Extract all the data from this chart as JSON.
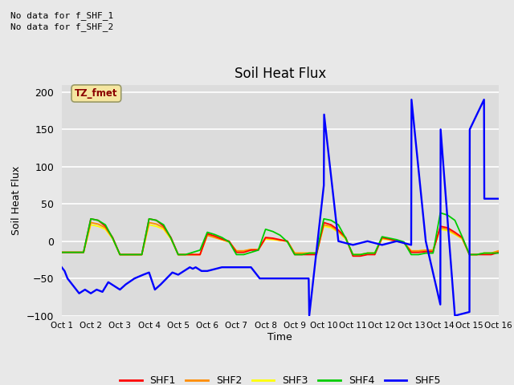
{
  "title": "Soil Heat Flux",
  "ylabel": "Soil Heat Flux",
  "xlabel": "Time",
  "no_data_text": [
    "No data for f_SHF_1",
    "No data for f_SHF_2"
  ],
  "tz_label": "TZ_fmet",
  "tz_box_color": "#f5e6a0",
  "tz_text_color": "#8b0000",
  "xlim": [
    0,
    15
  ],
  "ylim": [
    -100,
    210
  ],
  "yticks": [
    -100,
    -50,
    0,
    50,
    100,
    150,
    200
  ],
  "xtick_labels": [
    "Oct 1",
    "Oct 2",
    "Oct 3",
    "Oct 4",
    "Oct 5",
    "Oct 6",
    "Oct 7",
    "Oct 8",
    "Oct 9",
    "Oct 10",
    "Oct 11",
    "Oct 12",
    "Oct 13",
    "Oct 14",
    "Oct 15",
    "Oct 16"
  ],
  "background_color": "#e8e8e8",
  "plot_bg_color": "#dcdcdc",
  "grid_color": "#ffffff",
  "legend_colors": [
    "#ff0000",
    "#ff8c00",
    "#ffff00",
    "#00cc00",
    "#0000ff"
  ],
  "legend_labels": [
    "SHF1",
    "SHF2",
    "SHF3",
    "SHF4",
    "SHF5"
  ],
  "shf1_x": [
    0.0,
    0.25,
    0.5,
    0.75,
    1.0,
    1.25,
    1.5,
    1.75,
    2.0,
    2.25,
    2.5,
    2.75,
    3.0,
    3.25,
    3.5,
    3.75,
    4.0,
    4.25,
    4.5,
    4.75,
    5.0,
    5.25,
    5.5,
    5.75,
    6.0,
    6.25,
    6.5,
    6.75,
    7.0,
    7.25,
    7.5,
    7.75,
    8.0,
    8.25,
    8.5,
    8.75,
    9.0,
    9.25,
    9.5,
    9.75,
    10.0,
    10.25,
    10.5,
    10.75,
    11.0,
    11.25,
    11.5,
    11.75,
    12.0,
    12.25,
    12.5,
    12.75,
    13.0,
    13.25,
    13.5,
    13.75,
    14.0,
    14.25,
    14.5,
    14.75,
    15.0
  ],
  "shf1_y": [
    -15,
    -15,
    -15,
    -15,
    30,
    28,
    20,
    5,
    -18,
    -18,
    -18,
    -18,
    30,
    28,
    20,
    5,
    -18,
    -18,
    -18,
    -18,
    10,
    7,
    3,
    0,
    -15,
    -15,
    -12,
    -12,
    5,
    4,
    2,
    0,
    -18,
    -18,
    -18,
    -18,
    25,
    22,
    15,
    5,
    -20,
    -20,
    -18,
    -18,
    5,
    3,
    0,
    -2,
    -15,
    -15,
    -14,
    -14,
    20,
    18,
    12,
    5,
    -18,
    -18,
    -18,
    -18,
    -15
  ],
  "shf2_x": [
    0.0,
    0.25,
    0.5,
    0.75,
    1.0,
    1.25,
    1.5,
    1.75,
    2.0,
    2.25,
    2.5,
    2.75,
    3.0,
    3.25,
    3.5,
    3.75,
    4.0,
    4.25,
    4.5,
    4.75,
    5.0,
    5.25,
    5.5,
    5.75,
    6.0,
    6.25,
    6.5,
    6.75,
    7.0,
    7.25,
    7.5,
    7.75,
    8.0,
    8.25,
    8.5,
    8.75,
    9.0,
    9.25,
    9.5,
    9.75,
    10.0,
    10.25,
    10.5,
    10.75,
    11.0,
    11.25,
    11.5,
    11.75,
    12.0,
    12.25,
    12.5,
    12.75,
    13.0,
    13.25,
    13.5,
    13.75,
    14.0,
    14.25,
    14.5,
    14.75,
    15.0
  ],
  "shf2_y": [
    -15,
    -15,
    -15,
    -15,
    25,
    23,
    18,
    4,
    -18,
    -18,
    -18,
    -18,
    25,
    23,
    18,
    4,
    -18,
    -18,
    -18,
    -18,
    8,
    5,
    2,
    -1,
    -13,
    -13,
    -11,
    -11,
    4,
    3,
    1,
    0,
    -16,
    -16,
    -16,
    -16,
    22,
    20,
    13,
    4,
    -18,
    -18,
    -16,
    -16,
    4,
    2,
    0,
    -2,
    -13,
    -13,
    -12,
    -12,
    18,
    16,
    10,
    4,
    -18,
    -18,
    -16,
    -16,
    -13
  ],
  "shf3_x": [
    0.0,
    0.25,
    0.5,
    0.75,
    1.0,
    1.25,
    1.5,
    1.75,
    2.0,
    2.25,
    2.5,
    2.75,
    3.0,
    3.25,
    3.5,
    3.75,
    4.0,
    4.25,
    4.5,
    4.75,
    5.0,
    5.25,
    5.5,
    5.75,
    6.0,
    6.25,
    6.5,
    6.75,
    7.0,
    7.25,
    7.5,
    7.75,
    8.0,
    8.25,
    8.5,
    8.75,
    9.0,
    9.25,
    9.5,
    9.75,
    10.0,
    10.25,
    10.5,
    10.75,
    11.0,
    11.25,
    11.5,
    11.75,
    12.0,
    12.25,
    12.5,
    12.75,
    13.0,
    13.25,
    13.5,
    13.75,
    14.0,
    14.25,
    14.5,
    14.75,
    15.0
  ],
  "shf3_y": [
    -15,
    -15,
    -15,
    -15,
    22,
    20,
    16,
    3,
    -18,
    -18,
    -18,
    -18,
    22,
    20,
    16,
    3,
    -18,
    -18,
    -18,
    -18,
    8,
    5,
    2,
    -1,
    -13,
    -13,
    -11,
    -11,
    3,
    2,
    1,
    0,
    -16,
    -16,
    -16,
    -16,
    20,
    18,
    12,
    3,
    -18,
    -18,
    -16,
    -16,
    3,
    2,
    0,
    -2,
    -13,
    -13,
    -12,
    -12,
    16,
    14,
    9,
    3,
    -18,
    -18,
    -16,
    -16,
    -13
  ],
  "shf4_x": [
    0.0,
    0.25,
    0.5,
    0.75,
    1.0,
    1.25,
    1.5,
    1.75,
    2.0,
    2.25,
    2.5,
    2.75,
    3.0,
    3.25,
    3.5,
    3.75,
    4.0,
    4.25,
    4.5,
    4.75,
    5.0,
    5.25,
    5.5,
    5.75,
    6.0,
    6.25,
    6.5,
    6.75,
    7.0,
    7.25,
    7.5,
    7.75,
    8.0,
    8.25,
    8.5,
    8.75,
    9.0,
    9.25,
    9.5,
    9.75,
    10.0,
    10.25,
    10.5,
    10.75,
    11.0,
    11.25,
    11.5,
    11.75,
    12.0,
    12.25,
    12.5,
    12.75,
    13.0,
    13.25,
    13.5,
    13.75,
    14.0,
    14.25,
    14.5,
    14.75,
    15.0
  ],
  "shf4_y": [
    -15,
    -15,
    -15,
    -15,
    30,
    28,
    22,
    4,
    -18,
    -18,
    -18,
    -18,
    30,
    28,
    22,
    4,
    -18,
    -18,
    -15,
    -12,
    12,
    9,
    5,
    -1,
    -18,
    -18,
    -15,
    -12,
    16,
    13,
    8,
    -1,
    -18,
    -18,
    -16,
    -16,
    30,
    28,
    22,
    4,
    -18,
    -18,
    -16,
    -16,
    6,
    4,
    2,
    -1,
    -18,
    -18,
    -16,
    -16,
    38,
    35,
    28,
    6,
    -18,
    -18,
    -16,
    -16,
    -16
  ],
  "shf5_x": [
    0.0,
    0.1,
    0.2,
    0.4,
    0.6,
    0.8,
    1.0,
    1.2,
    1.4,
    1.6,
    1.8,
    2.0,
    2.2,
    2.5,
    2.8,
    3.0,
    3.2,
    3.4,
    3.6,
    3.8,
    4.0,
    4.2,
    4.4,
    4.5,
    4.6,
    4.8,
    5.0,
    5.2,
    5.5,
    5.8,
    6.0,
    6.2,
    6.5,
    6.8,
    7.0,
    7.2,
    7.5,
    7.8,
    8.0,
    8.2,
    8.48,
    8.5,
    9.0,
    9.01,
    9.5,
    10.0,
    10.5,
    11.0,
    11.5,
    12.0,
    12.01,
    12.5,
    13.0,
    13.01,
    13.5,
    14.0,
    14.01,
    14.5,
    14.51,
    15.0
  ],
  "shf5_y": [
    -35,
    -40,
    -50,
    -60,
    -70,
    -65,
    -70,
    -65,
    -68,
    -55,
    -60,
    -65,
    -58,
    -50,
    -45,
    -42,
    -65,
    -58,
    -50,
    -42,
    -45,
    -40,
    -35,
    -37,
    -35,
    -40,
    -40,
    -38,
    -35,
    -35,
    -35,
    -35,
    -35,
    -50,
    -50,
    -50,
    -50,
    -50,
    -50,
    -50,
    -50,
    -100,
    75,
    170,
    0,
    -5,
    0,
    -5,
    0,
    -5,
    190,
    0,
    -85,
    150,
    -100,
    -95,
    150,
    190,
    57,
    57
  ]
}
